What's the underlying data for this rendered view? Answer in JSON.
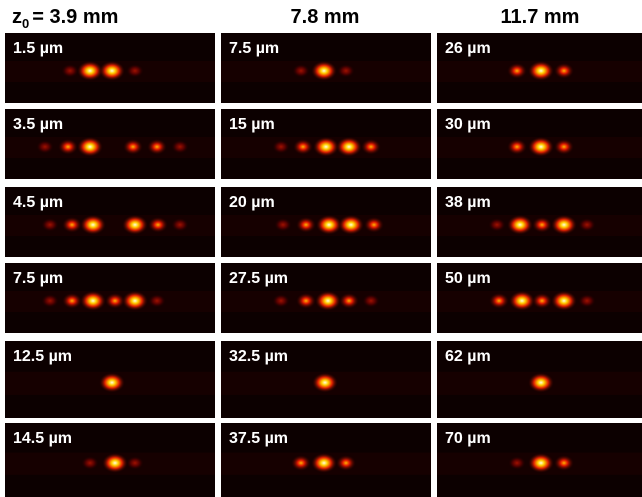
{
  "columns": [
    {
      "symbol": "z",
      "subscript": "0",
      "label": "= 3.9 mm"
    },
    {
      "label": "7.8 mm"
    },
    {
      "label": "11.7 mm"
    }
  ],
  "panels": [
    [
      "1.5 µm",
      "7.5 µm",
      "26 µm"
    ],
    [
      "3.5 µm",
      "15 µm",
      "30 µm"
    ],
    [
      "4.5 µm",
      "20 µm",
      "38 µm"
    ],
    [
      "7.5 µm",
      "27.5 µm",
      "50 µm"
    ],
    [
      "12.5 µm",
      "32.5 µm",
      "62 µm"
    ],
    [
      "14.5 µm",
      "37.5 µm",
      "70 µm"
    ]
  ]
}
